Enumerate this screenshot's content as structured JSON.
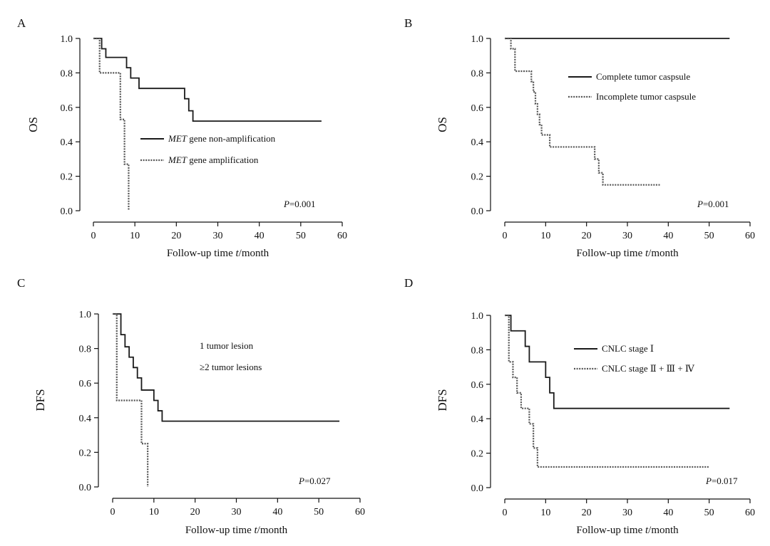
{
  "chart_data": [
    {
      "type": "line",
      "panel": "A",
      "xlabel": "Follow-up time t/month",
      "ylabel": "OS",
      "xlim": [
        0,
        60
      ],
      "ylim": [
        0,
        1
      ],
      "xticks": [
        "0",
        "10",
        "20",
        "30",
        "40",
        "50",
        "60"
      ],
      "yticks": [
        "0.0",
        "0.2",
        "0.4",
        "0.6",
        "0.8",
        "1.0"
      ],
      "pvalue": "P=0.001",
      "legend": "right",
      "grid": false,
      "series": [
        {
          "name": "MET gene non-amplification",
          "style": "solid",
          "x": [
            0,
            2,
            3,
            8,
            9,
            11,
            22,
            23,
            24,
            55
          ],
          "y": [
            1.0,
            0.94,
            0.89,
            0.83,
            0.77,
            0.71,
            0.65,
            0.58,
            0.52,
            0.52
          ]
        },
        {
          "name": "MET gene amplification",
          "style": "dotted",
          "x": [
            0,
            1.5,
            6.5,
            7.5,
            8.5
          ],
          "y": [
            1.0,
            0.8,
            0.53,
            0.27,
            0.0
          ]
        }
      ]
    },
    {
      "type": "line",
      "panel": "B",
      "xlabel": "Follow-up time t/month",
      "ylabel": "OS",
      "xlim": [
        0,
        60
      ],
      "ylim": [
        0,
        1
      ],
      "xticks": [
        "0",
        "10",
        "20",
        "30",
        "40",
        "50",
        "60"
      ],
      "yticks": [
        "0.0",
        "0.2",
        "0.4",
        "0.6",
        "0.8",
        "1.0"
      ],
      "pvalue": "P=0.001",
      "legend": "right",
      "grid": false,
      "series": [
        {
          "name": "Complete tumor caspsule",
          "style": "solid",
          "x": [
            0,
            55
          ],
          "y": [
            1.0,
            1.0
          ]
        },
        {
          "name": "Incomplete tumor caspsule",
          "style": "dotted",
          "x": [
            0,
            1.5,
            2.5,
            6.5,
            7,
            7.5,
            8,
            8.5,
            9,
            11,
            22,
            23,
            24,
            38
          ],
          "y": [
            1.0,
            0.94,
            0.81,
            0.75,
            0.69,
            0.62,
            0.56,
            0.5,
            0.44,
            0.37,
            0.3,
            0.22,
            0.15,
            0.15
          ]
        }
      ]
    },
    {
      "type": "line",
      "panel": "C",
      "xlabel": "Follow-up time t/month",
      "ylabel": "DFS",
      "xlim": [
        0,
        60
      ],
      "ylim": [
        0,
        1
      ],
      "xticks": [
        "0",
        "10",
        "20",
        "30",
        "40",
        "50",
        "60"
      ],
      "yticks": [
        "0.0",
        "0.2",
        "0.4",
        "0.6",
        "0.8",
        "1.0"
      ],
      "pvalue": "P=0.027",
      "legend": "center",
      "grid": false,
      "series": [
        {
          "name": "1 tumor lesion",
          "style": "solid",
          "x": [
            0,
            2,
            3,
            4,
            5,
            6,
            7,
            8,
            10,
            11,
            12,
            55
          ],
          "y": [
            1.0,
            0.88,
            0.81,
            0.75,
            0.69,
            0.63,
            0.56,
            0.56,
            0.5,
            0.44,
            0.38,
            0.38
          ]
        },
        {
          "name": "≥2 tumor lesions",
          "style": "dotted",
          "x": [
            0,
            1,
            7,
            8.5
          ],
          "y": [
            1.0,
            0.5,
            0.25,
            0.0
          ]
        }
      ]
    },
    {
      "type": "line",
      "panel": "D",
      "xlabel": "Follow-up time t/month",
      "ylabel": "DFS",
      "xlim": [
        0,
        60
      ],
      "ylim": [
        0,
        1
      ],
      "xticks": [
        "0",
        "10",
        "20",
        "30",
        "40",
        "50",
        "60"
      ],
      "yticks": [
        "0.0",
        "0.2",
        "0.4",
        "0.6",
        "0.8",
        "1.0"
      ],
      "pvalue": "P=0.017",
      "legend": "right",
      "grid": false,
      "series": [
        {
          "name": "CNLC stage Ⅰ",
          "style": "solid",
          "x": [
            0,
            1.5,
            5,
            6,
            10,
            11,
            12,
            55
          ],
          "y": [
            1.0,
            0.91,
            0.82,
            0.73,
            0.64,
            0.55,
            0.46,
            0.46
          ]
        },
        {
          "name": "CNLC stage Ⅱ + Ⅲ + Ⅳ",
          "style": "dotted",
          "x": [
            0,
            1,
            2,
            3,
            4,
            6,
            7,
            8,
            50
          ],
          "y": [
            1.0,
            0.73,
            0.64,
            0.55,
            0.46,
            0.37,
            0.23,
            0.12,
            0.12
          ]
        }
      ]
    }
  ]
}
